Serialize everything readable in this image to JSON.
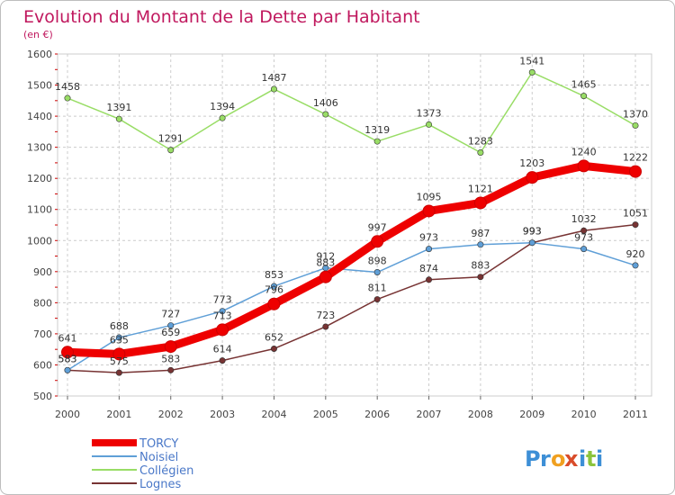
{
  "chart_data": {
    "type": "line",
    "title": "Evolution du Montant de la Dette par Habitant",
    "subtitle": "(en €)",
    "ylim": [
      500,
      1600
    ],
    "yticks": [
      500,
      600,
      700,
      800,
      900,
      1000,
      1100,
      1200,
      1300,
      1400,
      1500,
      1600
    ],
    "categories": [
      "2000",
      "2001",
      "2002",
      "2003",
      "2004",
      "2005",
      "2006",
      "2007",
      "2008",
      "2009",
      "2010",
      "2011"
    ],
    "grid": true,
    "legend_position": "bottom-left",
    "series": [
      {
        "name": "TORCY",
        "values": [
          641,
          635,
          659,
          713,
          796,
          883,
          997,
          1095,
          1121,
          1203,
          1240,
          1222
        ],
        "color": "#ee0000",
        "emphasis": true
      },
      {
        "name": "Noisiel",
        "values": [
          583,
          688,
          727,
          773,
          853,
          912,
          898,
          973,
          987,
          993,
          973,
          920
        ],
        "color": "#5f9fd7",
        "emphasis": false
      },
      {
        "name": "Collégien",
        "values": [
          1458,
          1391,
          1291,
          1394,
          1487,
          1406,
          1319,
          1373,
          1283,
          1541,
          1465,
          1370
        ],
        "color": "#99dd66",
        "emphasis": false
      },
      {
        "name": "Lognes",
        "values": [
          583,
          575,
          583,
          614,
          652,
          723,
          811,
          874,
          883,
          993,
          1032,
          1051
        ],
        "color": "#773333",
        "emphasis": false
      }
    ],
    "colors": {
      "background": "#ffffff",
      "frame": "#bdbdbd",
      "title": "#c0185e",
      "grid": "#cccccc",
      "axis_tick": "#cc0000"
    }
  },
  "brand": {
    "logo_text": "Proxiti"
  }
}
